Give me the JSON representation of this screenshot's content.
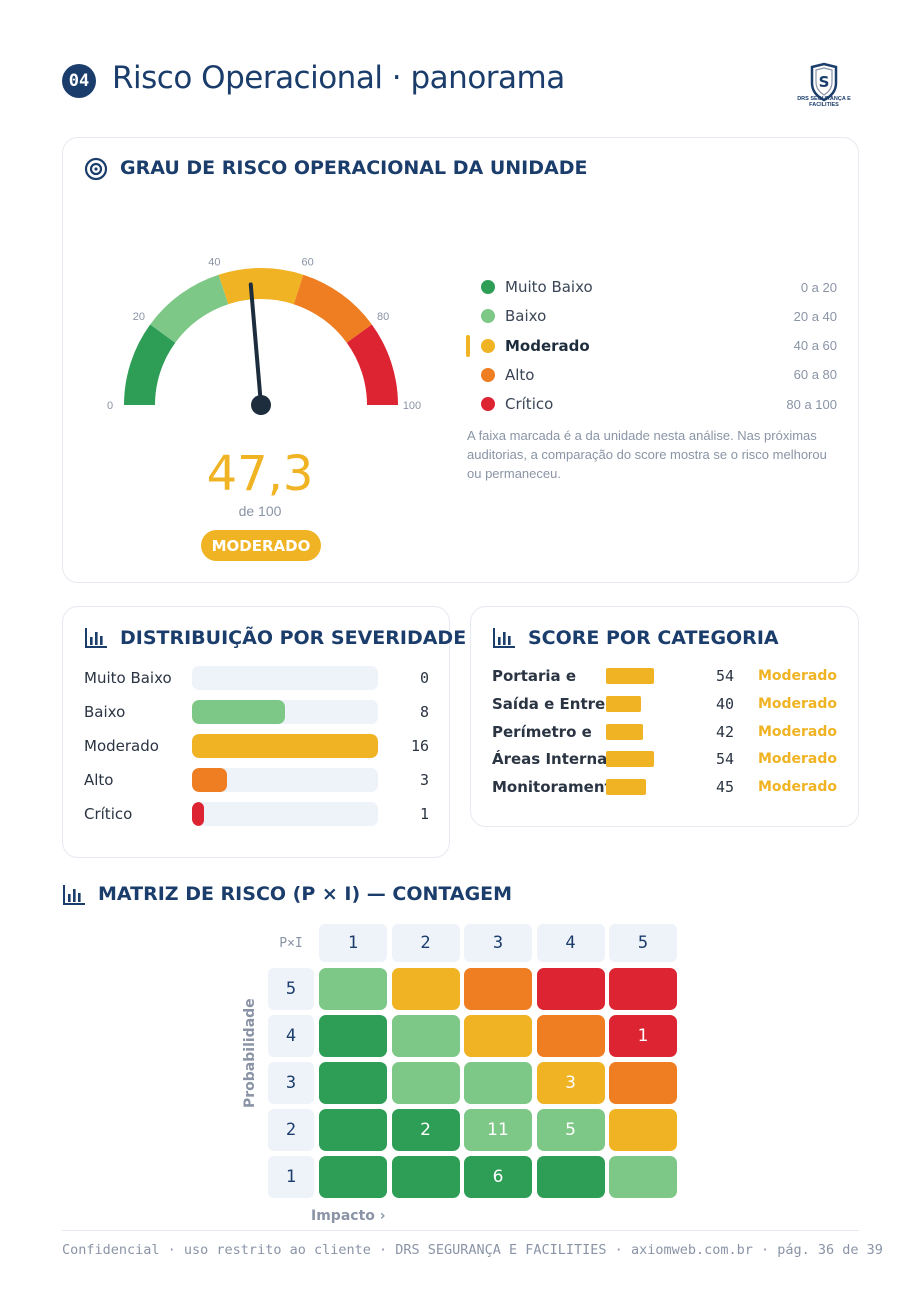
{
  "header": {
    "section_number": "04",
    "title": "Risco Operacional · panorama",
    "logo_text": "DRS SEGURANÇA E FACILITIES"
  },
  "gauge_card": {
    "title": "GRAU DE RISCO OPERACIONAL DA UNIDADE",
    "icon": "target-icon",
    "score_value": 47.3,
    "score_text": "47,3",
    "score_sub": "de 100",
    "badge": "MODERADO",
    "ticks": [
      "0",
      "20",
      "40",
      "60",
      "80",
      "100"
    ],
    "segments": [
      {
        "from": 0,
        "to": 20,
        "color": "#2e9e57"
      },
      {
        "from": 20,
        "to": 40,
        "color": "#7ec887"
      },
      {
        "from": 40,
        "to": 60,
        "color": "#f0b323"
      },
      {
        "from": 60,
        "to": 80,
        "color": "#ef7d22"
      },
      {
        "from": 80,
        "to": 100,
        "color": "#dc2433"
      }
    ],
    "legend": [
      {
        "label": "Muito Baixo",
        "range": "0 a 20",
        "color": "#2e9e57"
      },
      {
        "label": "Baixo",
        "range": "20 a 40",
        "color": "#7ec887"
      },
      {
        "label": "Moderado",
        "range": "40 a 60",
        "color": "#f0b323",
        "active": true
      },
      {
        "label": "Alto",
        "range": "60 a 80",
        "color": "#ef7d22"
      },
      {
        "label": "Crítico",
        "range": "80 a 100",
        "color": "#dc2433"
      }
    ],
    "note": "A faixa marcada é a da unidade nesta análise. Nas próximas auditorias, a comparação do score mostra se o risco melhorou ou permaneceu."
  },
  "distribution": {
    "title": "DISTRIBUIÇÃO POR SEVERIDADE",
    "icon": "bar-chart-icon",
    "max": 16,
    "rows": [
      {
        "label": "Muito Baixo",
        "value": 0,
        "color": "#2e9e57"
      },
      {
        "label": "Baixo",
        "value": 8,
        "color": "#7ec887"
      },
      {
        "label": "Moderado",
        "value": 16,
        "color": "#f0b323"
      },
      {
        "label": "Alto",
        "value": 3,
        "color": "#ef7d22"
      },
      {
        "label": "Crítico",
        "value": 1,
        "color": "#dc2433"
      }
    ]
  },
  "categories": {
    "title": "SCORE POR CATEGORIA",
    "icon": "bar-chart-icon",
    "rows": [
      {
        "label": "Portaria e",
        "value": 54,
        "level": "Moderado"
      },
      {
        "label": "Saída e Entrega",
        "value": 40,
        "level": "Moderado"
      },
      {
        "label": "Perímetro e",
        "value": 42,
        "level": "Moderado"
      },
      {
        "label": "Áreas Internas,",
        "value": 54,
        "level": "Moderado"
      },
      {
        "label": "Monitoramento",
        "value": 45,
        "level": "Moderado"
      }
    ]
  },
  "matrix": {
    "title": "MATRIZ DE RISCO (P × I) — CONTAGEM",
    "icon": "bar-chart-icon",
    "corner": "P×I",
    "y_label": "Probabilidade",
    "x_label": "Impacto ›",
    "columns": [
      "1",
      "2",
      "3",
      "4",
      "5"
    ],
    "rows": [
      {
        "p": "5",
        "cells": [
          {
            "c": "#7ec887",
            "n": ""
          },
          {
            "c": "#f0b323",
            "n": ""
          },
          {
            "c": "#ef7d22",
            "n": ""
          },
          {
            "c": "#dc2433",
            "n": ""
          },
          {
            "c": "#dc2433",
            "n": ""
          }
        ]
      },
      {
        "p": "4",
        "cells": [
          {
            "c": "#2e9e57",
            "n": ""
          },
          {
            "c": "#7ec887",
            "n": ""
          },
          {
            "c": "#f0b323",
            "n": ""
          },
          {
            "c": "#ef7d22",
            "n": ""
          },
          {
            "c": "#dc2433",
            "n": "1"
          }
        ]
      },
      {
        "p": "3",
        "cells": [
          {
            "c": "#2e9e57",
            "n": ""
          },
          {
            "c": "#7ec887",
            "n": ""
          },
          {
            "c": "#7ec887",
            "n": ""
          },
          {
            "c": "#f0b323",
            "n": "3"
          },
          {
            "c": "#ef7d22",
            "n": ""
          }
        ]
      },
      {
        "p": "2",
        "cells": [
          {
            "c": "#2e9e57",
            "n": ""
          },
          {
            "c": "#2e9e57",
            "n": "2"
          },
          {
            "c": "#7ec887",
            "n": "11"
          },
          {
            "c": "#7ec887",
            "n": "5"
          },
          {
            "c": "#f0b323",
            "n": ""
          }
        ]
      },
      {
        "p": "1",
        "cells": [
          {
            "c": "#2e9e57",
            "n": ""
          },
          {
            "c": "#2e9e57",
            "n": ""
          },
          {
            "c": "#2e9e57",
            "n": "6"
          },
          {
            "c": "#2e9e57",
            "n": ""
          },
          {
            "c": "#7ec887",
            "n": ""
          }
        ]
      }
    ]
  },
  "footer": {
    "text": "Confidencial · uso restrito ao cliente · DRS SEGURANÇA E FACILITIES · axiomweb.com.br · pág. 36 de 39"
  }
}
